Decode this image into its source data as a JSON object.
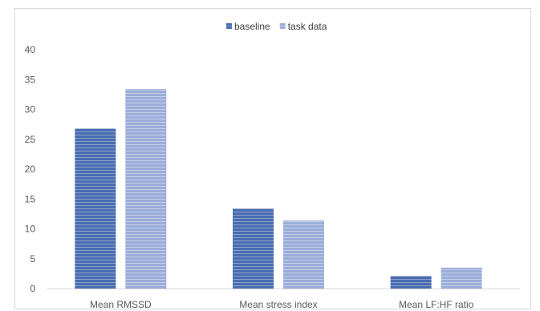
{
  "chart_data": {
    "type": "bar",
    "categories": [
      "Mean RMSSD",
      "Mean stress index",
      "Mean LF:HF ratio"
    ],
    "series": [
      {
        "name": "baseline",
        "values": [
          26.8,
          13.4,
          2.1
        ],
        "color": "#4a6db0"
      },
      {
        "name": "task data",
        "values": [
          33.4,
          11.4,
          3.5
        ],
        "color": "#9badd9"
      }
    ],
    "title": "",
    "xlabel": "",
    "ylabel": "",
    "ylim": [
      0,
      40
    ],
    "yticks": [
      0,
      5,
      10,
      15,
      20,
      25,
      30,
      35,
      40
    ],
    "grid": false,
    "legend_position": "top-center",
    "bar_fill": "horizontal-stripes"
  }
}
